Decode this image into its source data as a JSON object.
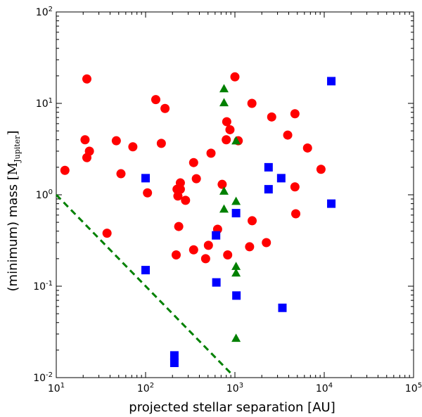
{
  "chart_data": {
    "type": "scatter",
    "title": "",
    "xlabel": "projected stellar separation [AU]",
    "ylabel_main": "(minimum) mass ",
    "ylabel_unit": "M",
    "ylabel_unit_sub": "Jupiter",
    "xscale": "log",
    "yscale": "log",
    "xlim": [
      10,
      100000
    ],
    "ylim": [
      0.01,
      100
    ],
    "x_ticks": [
      {
        "base": "10",
        "exp": "1"
      },
      {
        "base": "10",
        "exp": "2"
      },
      {
        "base": "10",
        "exp": "3"
      },
      {
        "base": "10",
        "exp": "4"
      },
      {
        "base": "10",
        "exp": "5"
      }
    ],
    "y_ticks": [
      {
        "base": "10",
        "exp": "-2"
      },
      {
        "base": "10",
        "exp": "-1"
      },
      {
        "base": "10",
        "exp": "0"
      },
      {
        "base": "10",
        "exp": "1"
      },
      {
        "base": "10",
        "exp": "2"
      }
    ],
    "grid": false,
    "series": [
      {
        "name": "circles",
        "marker": "circle",
        "color": "#ff0000",
        "points": [
          [
            12.5,
            1.85
          ],
          [
            22,
            18.5
          ],
          [
            21,
            4.0
          ],
          [
            22,
            2.55
          ],
          [
            23.5,
            3.0
          ],
          [
            37,
            0.38
          ],
          [
            47,
            3.9
          ],
          [
            53,
            1.7
          ],
          [
            72,
            3.35
          ],
          [
            105,
            1.05
          ],
          [
            130,
            11.0
          ],
          [
            150,
            3.65
          ],
          [
            165,
            8.8
          ],
          [
            220,
            0.22
          ],
          [
            225,
            1.15
          ],
          [
            230,
            0.97
          ],
          [
            235,
            0.45
          ],
          [
            245,
            1.35
          ],
          [
            245,
            1.15
          ],
          [
            280,
            0.87
          ],
          [
            345,
            2.25
          ],
          [
            345,
            0.25
          ],
          [
            370,
            1.5
          ],
          [
            470,
            0.2
          ],
          [
            505,
            0.28
          ],
          [
            540,
            2.85
          ],
          [
            640,
            0.42
          ],
          [
            720,
            1.3
          ],
          [
            800,
            4.0
          ],
          [
            810,
            6.3
          ],
          [
            830,
            0.22
          ],
          [
            880,
            5.15
          ],
          [
            1000,
            19.5
          ],
          [
            1090,
            3.9
          ],
          [
            1460,
            0.27
          ],
          [
            1550,
            10.0
          ],
          [
            1560,
            0.52
          ],
          [
            2250,
            0.3
          ],
          [
            2580,
            7.1
          ],
          [
            3900,
            4.5
          ],
          [
            4700,
            7.7
          ],
          [
            4700,
            1.22
          ],
          [
            4800,
            0.62
          ],
          [
            6500,
            3.25
          ],
          [
            9200,
            1.9
          ]
        ]
      },
      {
        "name": "squares",
        "marker": "square",
        "color": "#0000ff",
        "points": [
          [
            100,
            1.52
          ],
          [
            100,
            0.15
          ],
          [
            210,
            0.0175
          ],
          [
            210,
            0.0145
          ],
          [
            615,
            0.36
          ],
          [
            620,
            0.11
          ],
          [
            1030,
            0.63
          ],
          [
            1040,
            0.079
          ],
          [
            2380,
            2.0
          ],
          [
            2380,
            1.15
          ],
          [
            3300,
            1.52
          ],
          [
            3400,
            0.058
          ],
          [
            12000,
            17.5
          ],
          [
            12000,
            0.8
          ]
        ]
      },
      {
        "name": "triangles",
        "marker": "triangle",
        "color": "#008000",
        "points": [
          [
            755,
            14.5
          ],
          [
            755,
            10.2
          ],
          [
            755,
            1.1
          ],
          [
            755,
            0.7
          ],
          [
            1030,
            3.9
          ],
          [
            1030,
            0.85
          ],
          [
            1030,
            0.165
          ],
          [
            1030,
            0.14
          ],
          [
            1030,
            0.027
          ]
        ]
      }
    ],
    "dashed_line": {
      "color": "#008000",
      "from": [
        10,
        1.0
      ],
      "to": [
        930,
        0.0108
      ]
    }
  }
}
